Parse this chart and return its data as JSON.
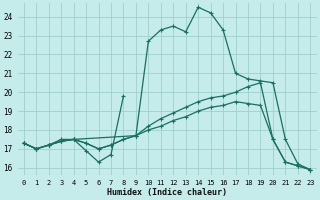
{
  "xlabel": "Humidex (Indice chaleur)",
  "bg_color": "#c5ecea",
  "grid_color": "#9ecfcc",
  "line_color": "#1a6e62",
  "xlim": [
    -0.5,
    23.5
  ],
  "ylim": [
    15.6,
    24.7
  ],
  "xticks": [
    0,
    1,
    2,
    3,
    4,
    5,
    6,
    7,
    8,
    9,
    10,
    11,
    12,
    13,
    14,
    15,
    16,
    17,
    18,
    19,
    20,
    21,
    22,
    23
  ],
  "yticks": [
    16,
    17,
    18,
    19,
    20,
    21,
    22,
    23,
    24
  ],
  "lw": 0.9,
  "ms": 3.5,
  "line1_x": [
    0,
    1,
    2,
    3,
    4,
    5,
    6,
    7,
    8,
    9,
    10,
    11,
    12,
    13,
    14,
    15,
    16,
    17,
    18,
    19,
    20,
    21,
    22,
    23
  ],
  "line1_y": [
    17.3,
    17.0,
    17.2,
    17.4,
    17.5,
    17.3,
    17.0,
    17.2,
    17.5,
    17.7,
    18.0,
    18.2,
    18.5,
    18.7,
    19.0,
    19.2,
    19.3,
    19.5,
    19.4,
    19.3,
    17.5,
    16.3,
    16.1,
    15.9
  ],
  "line2_x": [
    0,
    1,
    2,
    3,
    4,
    5,
    6,
    7,
    8,
    9,
    10,
    11,
    12,
    13,
    14,
    15,
    16,
    17,
    18,
    19,
    20,
    21,
    22,
    23
  ],
  "line2_y": [
    17.3,
    17.0,
    17.2,
    17.4,
    17.5,
    17.3,
    17.0,
    17.2,
    17.5,
    17.7,
    18.2,
    18.6,
    18.9,
    19.2,
    19.5,
    19.7,
    19.8,
    20.0,
    20.3,
    20.5,
    17.5,
    16.3,
    16.1,
    15.9
  ],
  "line3_x": [
    0,
    1,
    2,
    3,
    4,
    5,
    6,
    7,
    8
  ],
  "line3_y": [
    17.3,
    17.0,
    17.2,
    17.5,
    17.5,
    16.9,
    16.3,
    16.7,
    19.8
  ],
  "line4_x": [
    0,
    1,
    2,
    3,
    4,
    9,
    10,
    11,
    12,
    13,
    14,
    15,
    16,
    17,
    18,
    19,
    20,
    21,
    22,
    23
  ],
  "line4_y": [
    17.3,
    17.0,
    17.2,
    17.4,
    17.5,
    17.7,
    22.7,
    23.3,
    23.5,
    23.2,
    24.5,
    24.2,
    23.3,
    21.0,
    20.7,
    20.6,
    20.5,
    17.5,
    16.2,
    15.9
  ]
}
